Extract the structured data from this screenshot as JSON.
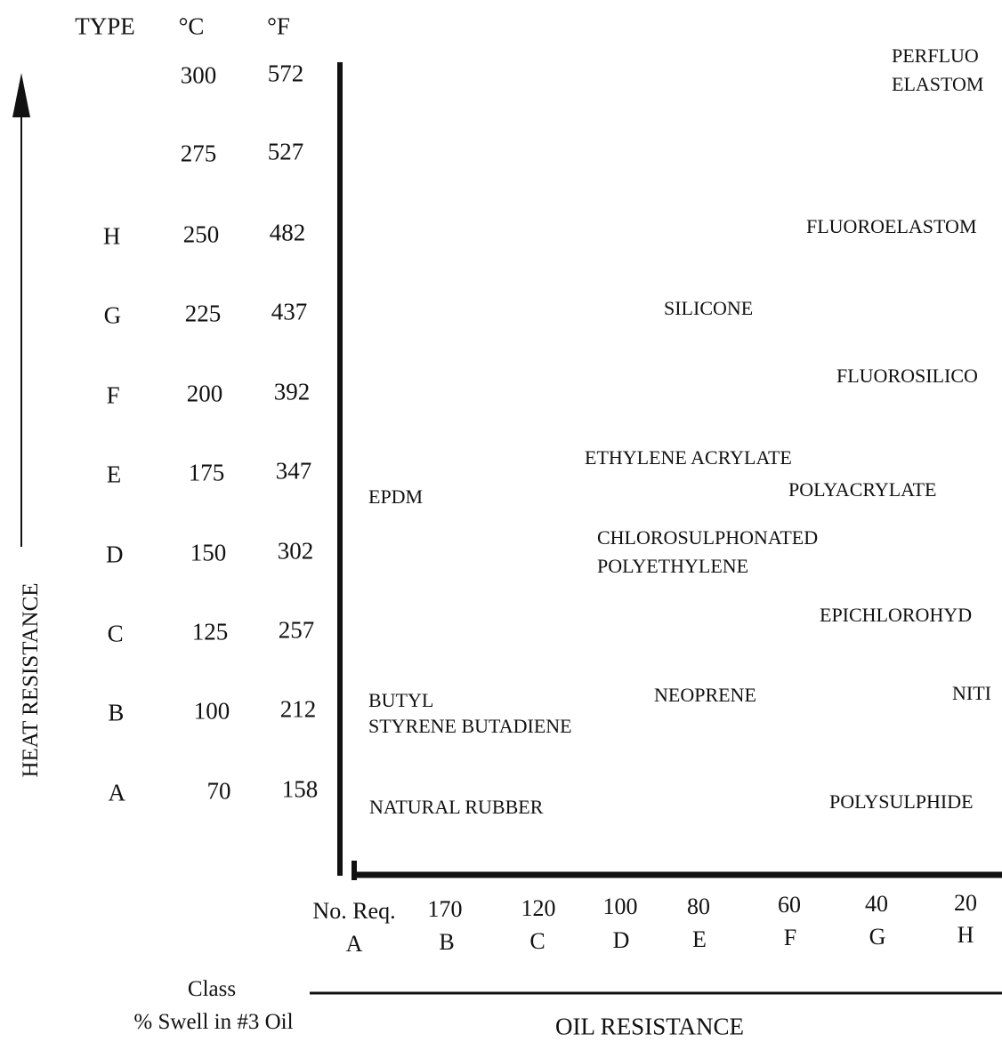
{
  "header": {
    "type": "TYPE",
    "celsius": "°C",
    "fahrenheit": "°F"
  },
  "rows": [
    {
      "type": null,
      "celsius": "300",
      "fahrenheit": "572"
    },
    {
      "type": null,
      "celsius": "275",
      "fahrenheit": "527"
    },
    {
      "type": "H",
      "celsius": "250",
      "fahrenheit": "482"
    },
    {
      "type": "G",
      "celsius": "225",
      "fahrenheit": "437"
    },
    {
      "type": "F",
      "celsius": "200",
      "fahrenheit": "392"
    },
    {
      "type": "E",
      "celsius": "175",
      "fahrenheit": "347"
    },
    {
      "type": "D",
      "celsius": "150",
      "fahrenheit": "302"
    },
    {
      "type": "C",
      "celsius": "125",
      "fahrenheit": "257"
    },
    {
      "type": "B",
      "celsius": "100",
      "fahrenheit": "212"
    },
    {
      "type": "A",
      "celsius": "70",
      "fahrenheit": "158"
    }
  ],
  "materials": [
    "PERFLUO",
    "ELASTOM",
    "FLUOROELASTOM",
    "SILICONE",
    "FLUOROSILICO",
    "ETHYLENE ACRYLATE",
    "POLYACRYLATE",
    "EPDM",
    "CHLOROSULPHONATED",
    "POLYETHYLENE",
    "EPICHLOROHYD",
    "BUTYL",
    "STYRENE BUTADIENE",
    "NEOPRENE",
    "NITI",
    "NATURAL RUBBER",
    "POLYSULPHIDE"
  ],
  "y_axis_title": "HEAT RESISTANCE",
  "x_axis": {
    "swell_first": "No. Req.",
    "swell": [
      "170",
      "120",
      "100",
      "80",
      "60",
      "40",
      "20"
    ],
    "classes": [
      "A",
      "B",
      "C",
      "D",
      "E",
      "F",
      "G",
      "H"
    ]
  },
  "legend": {
    "class": "Class",
    "swell": "% Swell in #3 Oil"
  },
  "x_axis_title": "OIL RESISTANCE"
}
